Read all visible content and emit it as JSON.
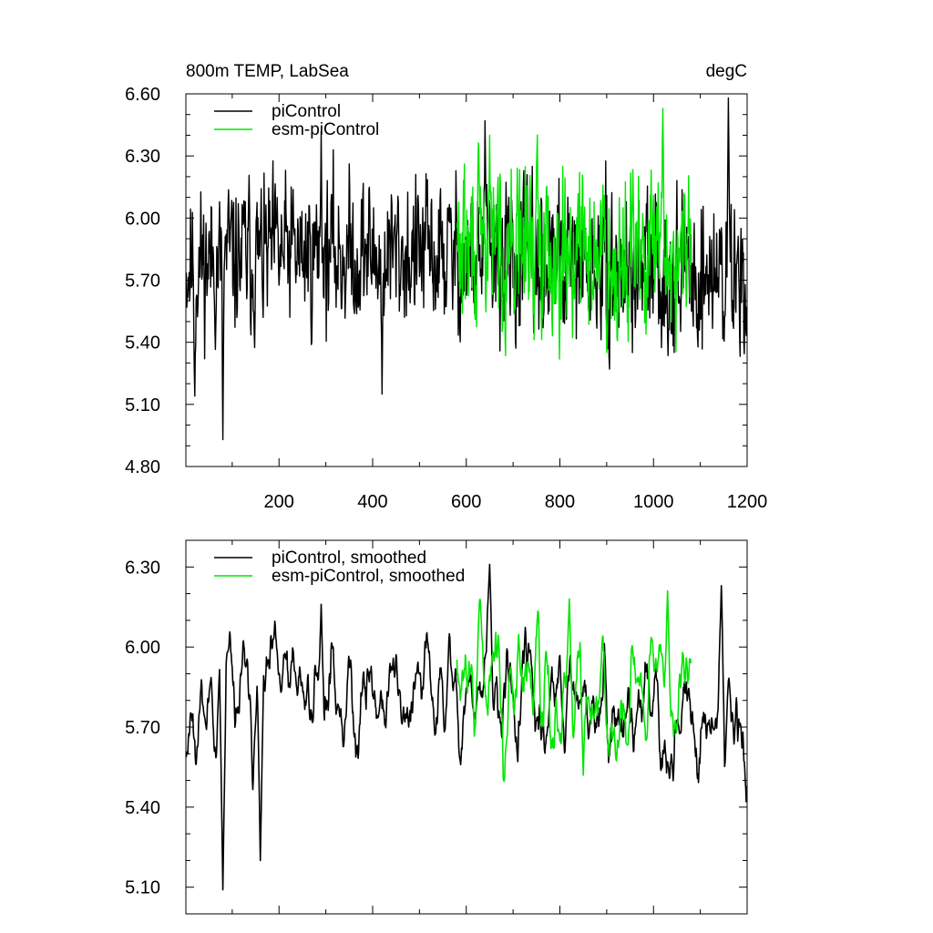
{
  "chart_data": [
    {
      "type": "line",
      "title_left": "800m TEMP, LabSea",
      "title_right": "degC",
      "xlabel": "",
      "ylabel": "",
      "xlim": [
        1,
        1200
      ],
      "ylim": [
        4.8,
        6.6
      ],
      "x_ticks": [
        200,
        400,
        600,
        800,
        1000,
        1200
      ],
      "x_tick_labels": [
        "200",
        "400",
        "600",
        "800",
        "1000",
        "1200"
      ],
      "y_ticks": [
        4.8,
        5.1,
        5.4,
        5.7,
        6.0,
        6.3,
        6.6
      ],
      "y_tick_labels": [
        "4.80",
        "5.10",
        "5.40",
        "5.70",
        "6.00",
        "6.30",
        "6.60"
      ],
      "legend_position": "top-left",
      "series": [
        {
          "name": "piControl",
          "color": "#000000",
          "x_start": 1,
          "x_end": 1200,
          "seed": 11,
          "base": 5.78,
          "trend": 0.05,
          "noise": 0.16,
          "spikes": [
            [
              290,
              6.42
            ],
            [
              640,
              6.47
            ],
            [
              1160,
              6.58
            ],
            [
              80,
              4.93
            ],
            [
              20,
              5.14
            ],
            [
              420,
              5.15
            ]
          ]
        },
        {
          "name": "esm-piControl",
          "color": "#00e600",
          "x_start": 580,
          "x_end": 1080,
          "seed": 29,
          "base": 5.84,
          "trend": 0.03,
          "noise": 0.17,
          "spikes": [
            [
              1020,
              6.53
            ],
            [
              650,
              6.4
            ],
            [
              900,
              5.35
            ]
          ]
        }
      ]
    },
    {
      "type": "line",
      "title_left": "",
      "title_right": "",
      "xlabel": "",
      "ylabel": "",
      "xlim": [
        1,
        1200
      ],
      "ylim": [
        5.0,
        6.4
      ],
      "x_ticks": [
        200,
        400,
        600,
        800,
        1000,
        1200
      ],
      "x_tick_labels": [
        "",
        "",
        "",
        "",
        "",
        ""
      ],
      "y_ticks": [
        5.1,
        5.4,
        5.7,
        6.0,
        6.3
      ],
      "y_tick_labels": [
        "5.10",
        "5.40",
        "5.70",
        "6.00",
        "6.30"
      ],
      "legend_position": "top-left",
      "series": [
        {
          "name": "piControl, smoothed",
          "color": "#000000",
          "x_start": 1,
          "x_end": 1200,
          "seed": 11,
          "base": 5.78,
          "trend": 0.05,
          "noise": 0.16,
          "spikes": [
            [
              650,
              6.31
            ],
            [
              1145,
              6.23
            ],
            [
              80,
              5.09
            ],
            [
              160,
              5.2
            ],
            [
              290,
              6.16
            ]
          ]
        },
        {
          "name": "esm-piControl, smoothed",
          "color": "#00e600",
          "x_start": 580,
          "x_end": 1080,
          "seed": 29,
          "base": 5.84,
          "trend": 0.03,
          "noise": 0.17,
          "spikes": [
            [
              1030,
              6.21
            ],
            [
              820,
              6.18
            ],
            [
              850,
              5.52
            ]
          ]
        }
      ]
    }
  ]
}
